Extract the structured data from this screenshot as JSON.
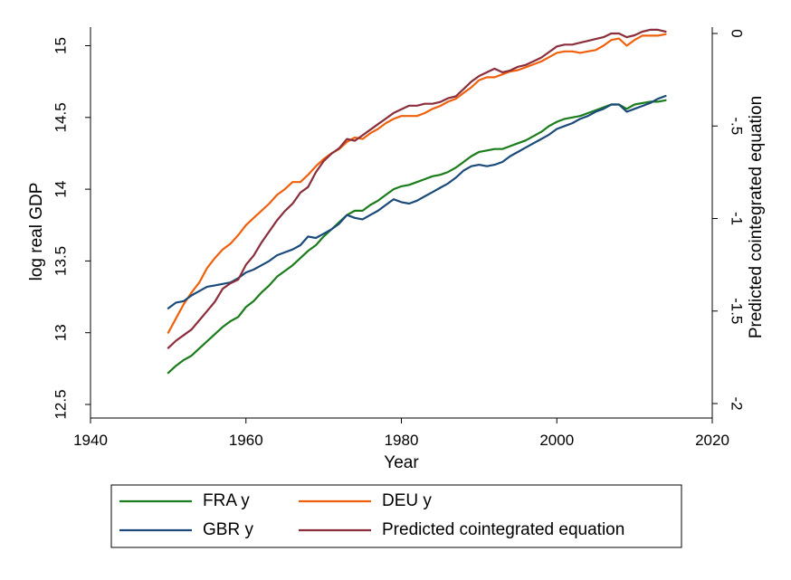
{
  "chart_data": {
    "type": "line",
    "xlabel": "Year",
    "ylabel": "log real GDP",
    "y2label": "Predicted cointegrated equation",
    "xlim": [
      1940,
      2020
    ],
    "ylim": [
      12.5,
      15
    ],
    "y2lim": [
      -2,
      0
    ],
    "xticks": [
      "1940",
      "1960",
      "1980",
      "2000",
      "2020"
    ],
    "yticks": [
      "12.5",
      "13",
      "13.5",
      "14",
      "14.5",
      "15"
    ],
    "y2ticks": [
      "-2",
      "-1.5",
      "-1",
      "-.5",
      "0"
    ],
    "grid": false,
    "legend_position": "bottom",
    "x": [
      1950,
      1951,
      1952,
      1953,
      1954,
      1955,
      1956,
      1957,
      1958,
      1959,
      1960,
      1961,
      1962,
      1963,
      1964,
      1965,
      1966,
      1967,
      1968,
      1969,
      1970,
      1971,
      1972,
      1973,
      1974,
      1975,
      1976,
      1977,
      1978,
      1979,
      1980,
      1981,
      1982,
      1983,
      1984,
      1985,
      1986,
      1987,
      1988,
      1989,
      1990,
      1991,
      1992,
      1993,
      1994,
      1995,
      1996,
      1997,
      1998,
      1999,
      2000,
      2001,
      2002,
      2003,
      2004,
      2005,
      2006,
      2007,
      2008,
      2009,
      2010,
      2011,
      2012,
      2013,
      2014
    ],
    "series": [
      {
        "name": "FRA y",
        "axis": "left",
        "color": "#1a7c1a",
        "values": [
          12.72,
          12.77,
          12.81,
          12.84,
          12.89,
          12.94,
          12.99,
          13.04,
          13.08,
          13.11,
          13.18,
          13.22,
          13.28,
          13.33,
          13.39,
          13.43,
          13.47,
          13.52,
          13.57,
          13.61,
          13.67,
          13.72,
          13.77,
          13.82,
          13.85,
          13.85,
          13.89,
          13.92,
          13.96,
          14.0,
          14.02,
          14.03,
          14.05,
          14.07,
          14.09,
          14.1,
          14.12,
          14.15,
          14.19,
          14.23,
          14.26,
          14.27,
          14.28,
          14.28,
          14.3,
          14.32,
          14.34,
          14.37,
          14.4,
          14.44,
          14.47,
          14.49,
          14.5,
          14.51,
          14.53,
          14.55,
          14.57,
          14.59,
          14.59,
          14.56,
          14.59,
          14.6,
          14.61,
          14.61,
          14.62
        ]
      },
      {
        "name": "DEU y",
        "axis": "left",
        "color": "#f0600c",
        "values": [
          13.0,
          13.1,
          13.2,
          13.28,
          13.35,
          13.45,
          13.52,
          13.58,
          13.62,
          13.68,
          13.75,
          13.8,
          13.85,
          13.9,
          13.96,
          14.0,
          14.05,
          14.05,
          14.1,
          14.16,
          14.21,
          14.25,
          14.28,
          14.33,
          14.36,
          14.35,
          14.39,
          14.42,
          14.46,
          14.49,
          14.51,
          14.51,
          14.51,
          14.53,
          14.56,
          14.58,
          14.61,
          14.63,
          14.67,
          14.71,
          14.76,
          14.78,
          14.78,
          14.8,
          14.82,
          14.83,
          14.85,
          14.87,
          14.89,
          14.92,
          14.95,
          14.96,
          14.96,
          14.95,
          14.96,
          14.97,
          15.0,
          15.04,
          15.05,
          15.0,
          15.04,
          15.07,
          15.07,
          15.07,
          15.08
        ]
      },
      {
        "name": "GBR y",
        "axis": "left",
        "color": "#1a4a7a",
        "values": [
          13.17,
          13.21,
          13.22,
          13.26,
          13.29,
          13.32,
          13.33,
          13.34,
          13.35,
          13.38,
          13.42,
          13.44,
          13.47,
          13.5,
          13.54,
          13.56,
          13.58,
          13.61,
          13.67,
          13.66,
          13.69,
          13.72,
          13.76,
          13.82,
          13.8,
          13.79,
          13.82,
          13.85,
          13.89,
          13.93,
          13.91,
          13.9,
          13.92,
          13.95,
          13.98,
          14.01,
          14.04,
          14.08,
          14.13,
          14.16,
          14.17,
          14.16,
          14.17,
          14.19,
          14.23,
          14.26,
          14.29,
          14.32,
          14.35,
          14.38,
          14.42,
          14.44,
          14.46,
          14.49,
          14.51,
          14.54,
          14.56,
          14.59,
          14.59,
          14.54,
          14.56,
          14.58,
          14.6,
          14.63,
          14.65
        ]
      },
      {
        "name": "Predicted cointegrated equation",
        "axis": "right",
        "color": "#8b2e3b",
        "values": [
          -1.7,
          -1.66,
          -1.63,
          -1.6,
          -1.55,
          -1.5,
          -1.45,
          -1.38,
          -1.35,
          -1.33,
          -1.25,
          -1.2,
          -1.13,
          -1.07,
          -1.01,
          -0.96,
          -0.92,
          -0.86,
          -0.83,
          -0.75,
          -0.69,
          -0.65,
          -0.62,
          -0.57,
          -0.58,
          -0.55,
          -0.52,
          -0.49,
          -0.46,
          -0.43,
          -0.41,
          -0.39,
          -0.39,
          -0.38,
          -0.38,
          -0.37,
          -0.35,
          -0.34,
          -0.3,
          -0.26,
          -0.23,
          -0.21,
          -0.19,
          -0.21,
          -0.2,
          -0.18,
          -0.17,
          -0.15,
          -0.13,
          -0.1,
          -0.07,
          -0.06,
          -0.06,
          -0.05,
          -0.04,
          -0.03,
          -0.02,
          0.0,
          0.0,
          -0.02,
          -0.01,
          0.01,
          0.02,
          0.02,
          0.01
        ]
      }
    ]
  }
}
